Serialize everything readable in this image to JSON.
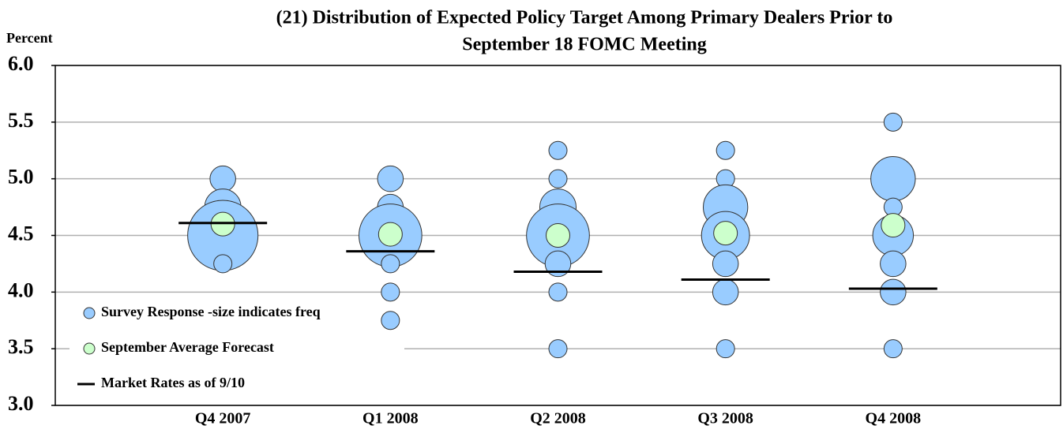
{
  "chart_data": {
    "type": "bubble",
    "title": [
      "(21) Distribution of Expected Policy Target Among Primary Dealers Prior to",
      "September 18 FOMC Meeting"
    ],
    "y_label": "Percent",
    "categories": [
      "Q4 2007",
      "Q1 2008",
      "Q2 2008",
      "Q3 2008",
      "Q4 2008"
    ],
    "ylim": [
      3,
      6
    ],
    "yticks": [
      {
        "value": 3,
        "label": "3.0"
      },
      3.5,
      {
        "value": 4,
        "label": "4.0"
      },
      4.5,
      {
        "value": 5,
        "label": "5.0"
      },
      5.5,
      {
        "value": 6,
        "label": "6.0"
      }
    ],
    "grid": true,
    "legend": "lower-left",
    "series": [
      {
        "name": "Survey Response -size indicates freq",
        "marker": "circle",
        "color": "#99ccff",
        "x": [
          "Q4 2007",
          "Q4 2007",
          "Q4 2007",
          "Q4 2007",
          "Q1 2008",
          "Q1 2008",
          "Q1 2008",
          "Q1 2008",
          "Q1 2008",
          "Q1 2008",
          "Q2 2008",
          "Q2 2008",
          "Q2 2008",
          "Q2 2008",
          "Q2 2008",
          "Q2 2008",
          "Q2 2008",
          "Q3 2008",
          "Q3 2008",
          "Q3 2008",
          "Q3 2008",
          "Q3 2008",
          "Q3 2008",
          "Q3 2008",
          "Q4 2008",
          "Q4 2008",
          "Q4 2008",
          "Q4 2008",
          "Q4 2008",
          "Q4 2008",
          "Q4 2008"
        ],
        "values": [
          5.0,
          4.75,
          4.5,
          4.25,
          5.0,
          4.75,
          4.5,
          4.25,
          4.0,
          3.75,
          5.25,
          5.0,
          4.75,
          4.5,
          4.25,
          4.0,
          3.5,
          5.25,
          5.0,
          4.75,
          4.5,
          4.25,
          4.0,
          3.5,
          5.5,
          5.0,
          4.75,
          4.5,
          4.25,
          4.0,
          3.5
        ],
        "sizes": [
          2,
          4,
          15,
          1,
          2,
          2,
          12,
          1,
          1,
          1,
          1,
          1,
          4,
          12,
          2,
          1,
          1,
          1,
          1,
          6,
          7,
          2,
          2,
          1,
          1,
          6,
          1,
          5,
          2,
          2,
          1
        ]
      },
      {
        "name": "September Average Forecast",
        "marker": "circle",
        "color": "#ccffcc",
        "values": [
          4.6,
          4.51,
          4.5,
          4.52,
          4.59
        ]
      },
      {
        "name": "Market Rates as of 9/10",
        "marker": "dash",
        "color": "#000000",
        "values": [
          4.61,
          4.36,
          4.18,
          4.11,
          4.03
        ]
      }
    ]
  }
}
